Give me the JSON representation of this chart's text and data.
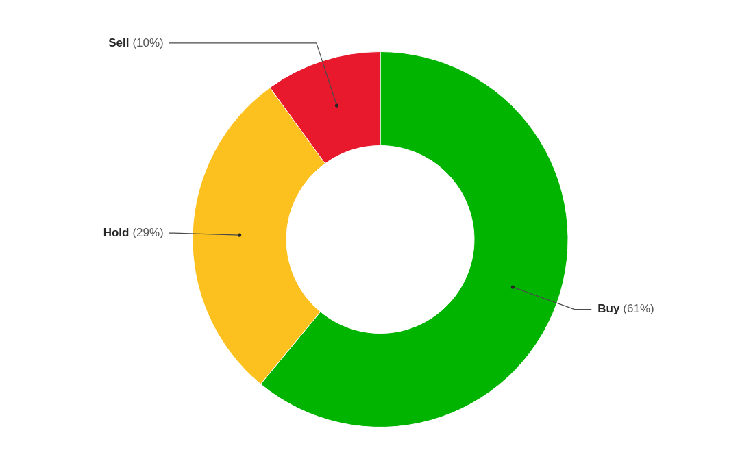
{
  "chart_data": {
    "type": "donut",
    "categories": [
      "Buy",
      "Hold",
      "Sell"
    ],
    "values": [
      61,
      29,
      10
    ],
    "colors": [
      "#00b400",
      "#fdc11f",
      "#e8192c"
    ],
    "value_labels": [
      "(61%)",
      "(29%)",
      "(10%)"
    ]
  }
}
